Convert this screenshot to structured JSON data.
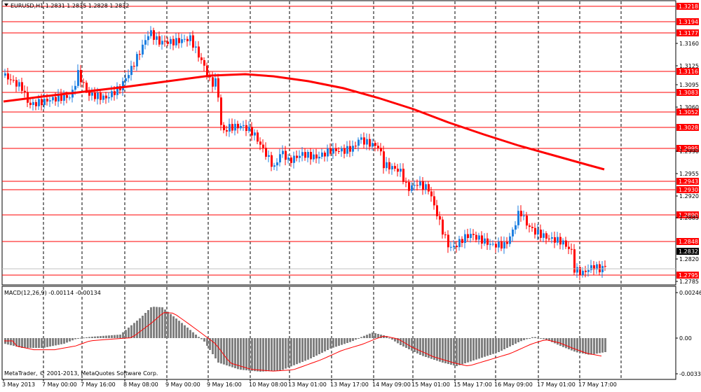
{
  "header": {
    "symbol_text": "EURUSD,H1  1.2831 1.2835 1.2828 1.2832"
  },
  "indicator": {
    "label": "MACD(12,26,9) -0.00114 -0.00134",
    "axis": [
      "0.00246",
      "0.00",
      "-0.00335"
    ]
  },
  "copyright": "MetaTrader, © 2001-2013, MetaQuotes Software Corp.",
  "colors": {
    "bull_candle": "#1e7fe0",
    "bear_candle": "#ff0000",
    "moving_average": "#ff0000",
    "level_line": "#ff0000",
    "histogram": "#808080",
    "signal_line": "#ff0000",
    "grid": "#000000"
  },
  "price_axis": {
    "ticks": [
      "1.3160",
      "1.3125",
      "1.3095",
      "1.3060",
      "1.2990",
      "1.2955",
      "1.2920",
      "1.2885",
      "1.2820",
      "1.2785"
    ],
    "level_tags": [
      "1.3218",
      "1.3194",
      "1.3177",
      "1.3116",
      "1.3083",
      "1.3052",
      "1.3028",
      "1.2995",
      "1.2943",
      "1.2930",
      "1.2890",
      "1.2848",
      "1.2795"
    ],
    "current_price": "1.2832"
  },
  "time_axis": {
    "labels": [
      "3 May 2013",
      "7 May 00:00",
      "7 May 16:00",
      "8 May 08:00",
      "9 May 00:00",
      "9 May 16:00",
      "10 May 08:00",
      "13 May 01:00",
      "13 May 17:00",
      "14 May 09:00",
      "15 May 01:00",
      "15 May 17:00",
      "16 May 09:00",
      "17 May 01:00",
      "17 May 17:00"
    ]
  }
}
